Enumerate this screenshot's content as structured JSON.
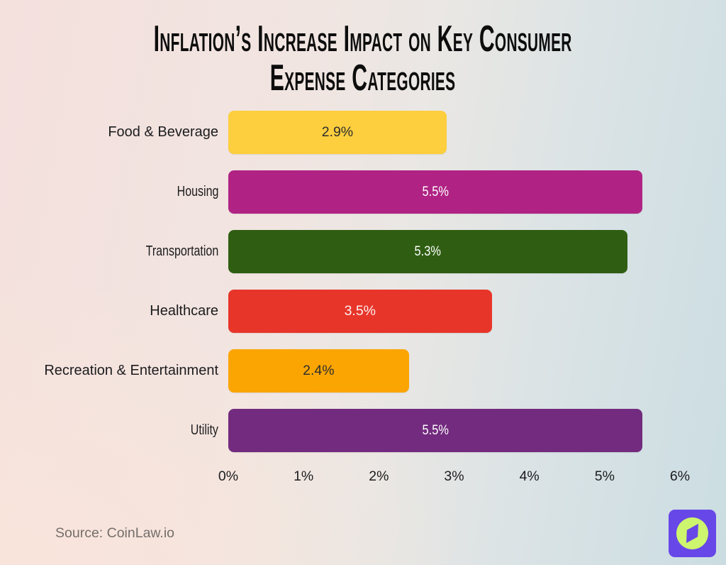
{
  "header": {
    "title_line1": "Inflation’s Increase Impact on Key Consumer",
    "title_line2": "Expense Categories"
  },
  "chart_data": {
    "type": "bar",
    "orientation": "horizontal",
    "title": "Inflation’s Increase Impact on Key Consumer Expense Categories",
    "categories": [
      "Food & Beverage",
      "Housing",
      "Transportation",
      "Healthcare",
      "Recreation & Entertainment",
      "Utility"
    ],
    "values": [
      2.9,
      5.5,
      5.3,
      3.5,
      2.4,
      5.5
    ],
    "value_labels": [
      "2.9%",
      "5.5%",
      "5.3%",
      "3.5%",
      "2.4%",
      "5.5%"
    ],
    "colors": [
      "#FDCE3D",
      "#B02384",
      "#2F5E12",
      "#E8352A",
      "#FBA502",
      "#722B7E"
    ],
    "value_text_colors": [
      "#2E2E2E",
      "#FFFFFF",
      "#FFFFFF",
      "#FCEFEC",
      "#2E2E2E",
      "#FFFFFF"
    ],
    "x_ticks": [
      "0%",
      "1%",
      "2%",
      "3%",
      "4%",
      "5%",
      "6%"
    ],
    "xlim": [
      0,
      6
    ],
    "grid": false,
    "legend": false
  },
  "footer": {
    "source": "Source: CoinLaw.io"
  },
  "logo": {
    "name": "coinlaw-compass-logo",
    "square_color": "#6847E8",
    "icon_color": "#CDF56E"
  }
}
